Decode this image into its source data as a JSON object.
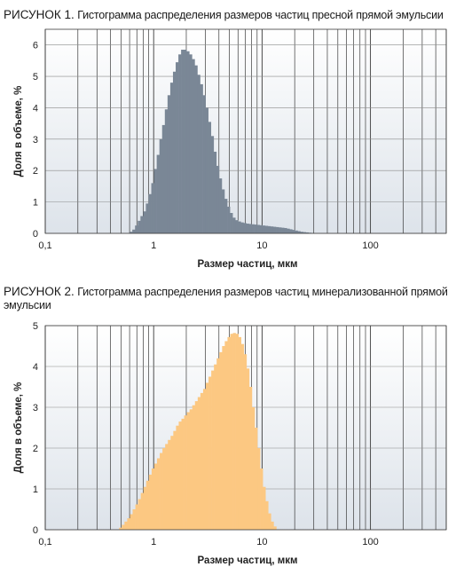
{
  "chart_data": [
    {
      "type": "bar",
      "figure_label": "РИСУНОК 1.",
      "title": "Гистограмма распределения размеров частиц пресной прямой эмульсии",
      "xlabel": "Размер частиц, мкм",
      "ylabel": "Доля в объеме, %",
      "x_scale": "log",
      "xlim": [
        0.1,
        500
      ],
      "ylim": [
        0,
        6.5
      ],
      "x_ticks": [
        "0,1",
        "1",
        "10",
        "100"
      ],
      "x_tick_values": [
        0.1,
        1,
        10,
        100
      ],
      "y_ticks": [
        "0",
        "1",
        "2",
        "3",
        "4",
        "5",
        "6"
      ],
      "grid": true,
      "bar_color": "#7a8796",
      "bin_x_start": 0.6,
      "bins_per_decade": 40,
      "values": [
        0.05,
        0.12,
        0.25,
        0.4,
        0.55,
        0.7,
        0.95,
        1.25,
        1.6,
        2.05,
        2.5,
        3.0,
        3.45,
        3.95,
        4.4,
        4.8,
        5.15,
        5.45,
        5.7,
        5.85,
        5.85,
        5.8,
        5.7,
        5.55,
        5.35,
        5.05,
        4.75,
        4.4,
        4.0,
        3.55,
        3.1,
        2.6,
        2.15,
        1.75,
        1.4,
        1.1,
        0.85,
        0.65,
        0.5,
        0.42,
        0.38,
        0.35,
        0.33,
        0.31,
        0.3,
        0.29,
        0.28,
        0.27,
        0.26,
        0.25,
        0.24,
        0.23,
        0.22,
        0.21,
        0.2,
        0.19,
        0.18,
        0.17,
        0.15,
        0.13,
        0.11,
        0.09,
        0.07,
        0.05,
        0.04,
        0.03,
        0.02,
        0.01
      ]
    },
    {
      "type": "bar",
      "figure_label": "РИСУНОК 2.",
      "title": "Гистограмма распределения размеров частиц минерализованной прямой эмульсии",
      "xlabel": "Размер частиц, мкм",
      "ylabel": "Доля в объеме, %",
      "x_scale": "log",
      "xlim": [
        0.1,
        500
      ],
      "ylim": [
        0,
        5
      ],
      "x_ticks": [
        "0,1",
        "1",
        "10",
        "100"
      ],
      "x_tick_values": [
        0.1,
        1,
        10,
        100
      ],
      "y_ticks": [
        "0",
        "1",
        "2",
        "3",
        "4",
        "5"
      ],
      "grid": true,
      "bar_color": "#fcc882",
      "bin_x_start": 0.48,
      "bins_per_decade": 40,
      "values": [
        0.05,
        0.12,
        0.2,
        0.28,
        0.38,
        0.5,
        0.62,
        0.75,
        0.9,
        1.05,
        1.2,
        1.35,
        1.5,
        1.62,
        1.75,
        1.88,
        2.0,
        2.1,
        2.2,
        2.3,
        2.42,
        2.55,
        2.65,
        2.72,
        2.8,
        2.88,
        2.95,
        3.05,
        3.15,
        3.25,
        3.35,
        3.45,
        3.6,
        3.75,
        3.9,
        4.05,
        4.2,
        4.35,
        4.5,
        4.62,
        4.72,
        4.8,
        4.82,
        4.8,
        4.72,
        4.55,
        4.3,
        3.95,
        3.5,
        3.0,
        2.5,
        2.0,
        1.5,
        1.05,
        0.7,
        0.4,
        0.2,
        0.08
      ]
    }
  ]
}
